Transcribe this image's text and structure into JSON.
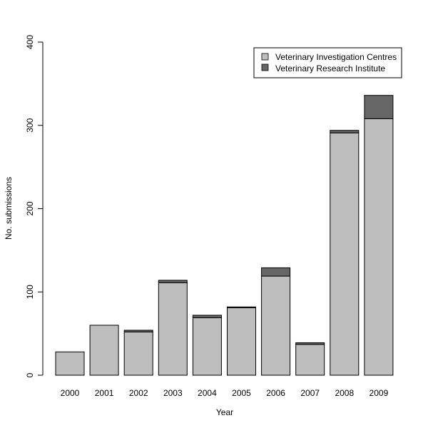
{
  "chart_data": {
    "type": "bar",
    "stacked": true,
    "categories": [
      "2000",
      "2001",
      "2002",
      "2003",
      "2004",
      "2005",
      "2006",
      "2007",
      "2008",
      "2009"
    ],
    "series": [
      {
        "name": "Veterinary Investigation Centres",
        "color": "#bebebe",
        "values": [
          28,
          60,
          52,
          111,
          69,
          81,
          119,
          37,
          291,
          308
        ]
      },
      {
        "name": "Veterinary Research Institute",
        "color": "#666666",
        "values": [
          0,
          0,
          2,
          3,
          3,
          1,
          10,
          2,
          3,
          28
        ]
      }
    ],
    "xlabel": "Year",
    "ylabel": "No. submissions",
    "ylim": [
      0,
      400
    ],
    "yticks": [
      "0",
      "100",
      "200",
      "300",
      "400"
    ],
    "legend_position": "top-right",
    "grid": false
  }
}
